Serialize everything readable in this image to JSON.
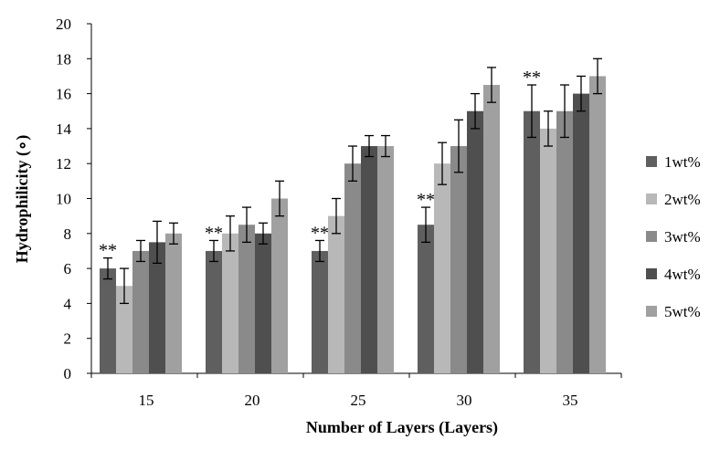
{
  "chart_data": {
    "type": "bar",
    "title": "",
    "xlabel": "Number of Layers (Layers)",
    "ylabel": "Hydrophilicity (∘)",
    "ylim": [
      0,
      20
    ],
    "yticks": [
      0,
      2,
      4,
      6,
      8,
      10,
      12,
      14,
      16,
      18,
      20
    ],
    "categories": [
      "15",
      "20",
      "25",
      "30",
      "35"
    ],
    "series": [
      {
        "name": "1wt%",
        "color": "#5f5f5f",
        "values": [
          6,
          7,
          7,
          8.5,
          15
        ],
        "errors": [
          0.6,
          0.6,
          0.6,
          1.0,
          1.5
        ]
      },
      {
        "name": "2wt%",
        "color": "#b8b8b8",
        "values": [
          5,
          8,
          9,
          12,
          14
        ],
        "errors": [
          1.0,
          1.0,
          1.0,
          1.2,
          1.0
        ]
      },
      {
        "name": "3wt%",
        "color": "#8a8a8a",
        "values": [
          7,
          8.5,
          12,
          13,
          15
        ],
        "errors": [
          0.6,
          1.0,
          1.0,
          1.5,
          1.5
        ]
      },
      {
        "name": "4wt%",
        "color": "#4f4f4f",
        "values": [
          7.5,
          8,
          13,
          15,
          16
        ],
        "errors": [
          1.2,
          0.6,
          0.6,
          1.0,
          1.0
        ]
      },
      {
        "name": "5wt%",
        "color": "#a0a0a0",
        "values": [
          8,
          10,
          13,
          16.5,
          17
        ],
        "errors": [
          0.6,
          1.0,
          0.6,
          1.0,
          1.0
        ]
      }
    ],
    "annotations": [
      {
        "text": "**",
        "category": "15"
      },
      {
        "text": "**",
        "category": "20"
      },
      {
        "text": "**",
        "category": "25"
      },
      {
        "text": "**",
        "category": "30"
      },
      {
        "text": "**",
        "category": "35"
      }
    ],
    "legend_position": "right",
    "grid": false
  }
}
